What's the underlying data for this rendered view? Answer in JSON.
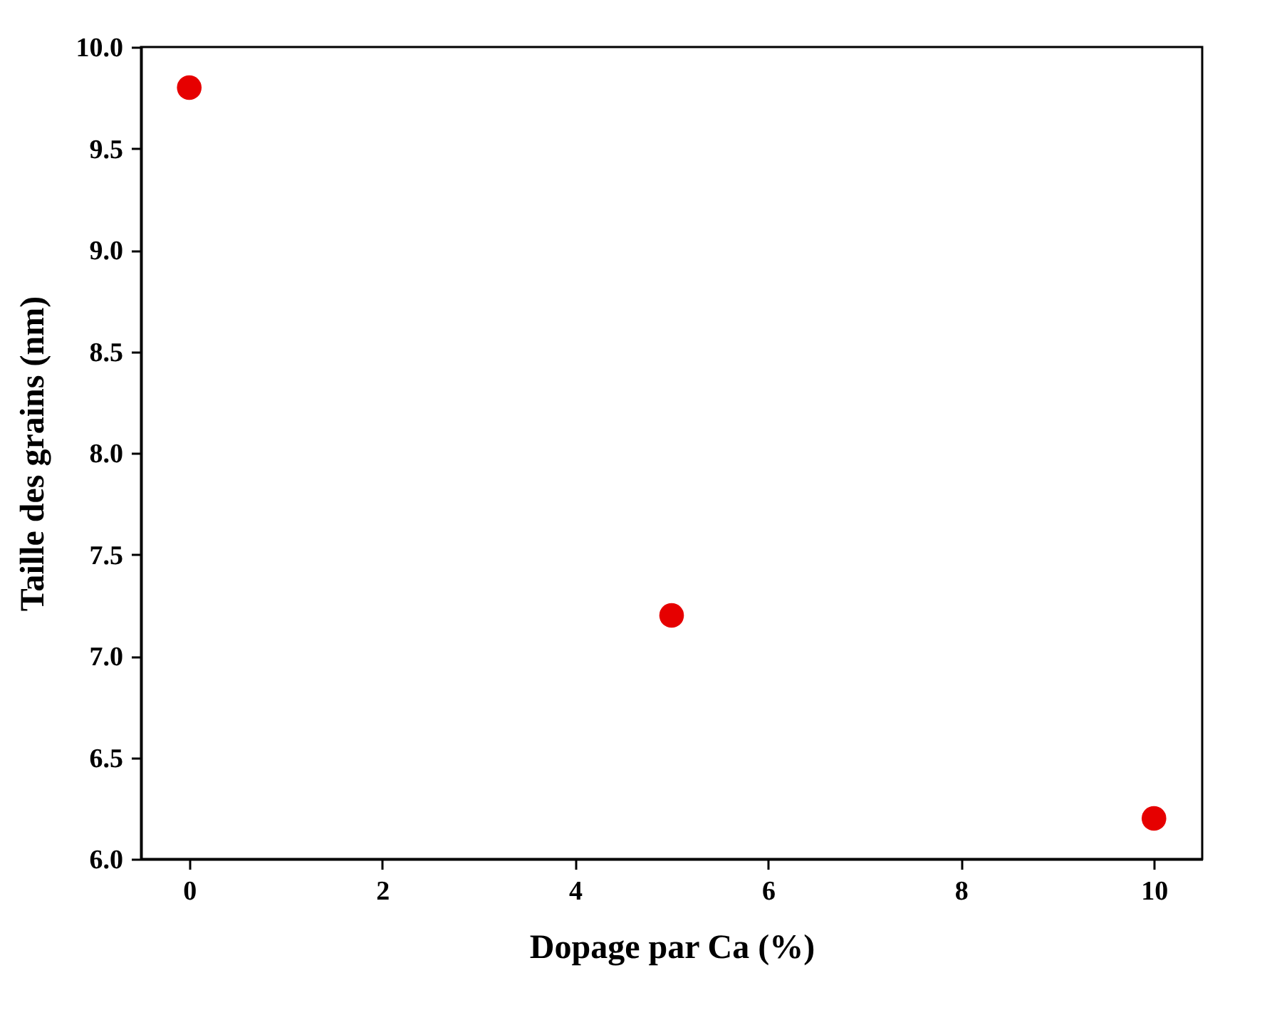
{
  "chart_data": {
    "type": "scatter",
    "xlabel": "Dopage par Ca (%)",
    "ylabel": "Taille des grains (nm)",
    "x": [
      0,
      5,
      10
    ],
    "series": [
      {
        "color": "#e60000",
        "values": [
          9.8,
          7.2,
          6.2
        ]
      }
    ],
    "xlim": [
      -0.5,
      10.5
    ],
    "xticks": [
      0,
      2,
      4,
      6,
      8,
      10
    ],
    "ylim": [
      6.0,
      10.0
    ],
    "yticks": [
      {
        "value": 6,
        "label": "6.0"
      },
      {
        "value": 6.5,
        "label": "6.5"
      },
      {
        "value": 7,
        "label": "7.0"
      },
      {
        "value": 7.5,
        "label": "7.5"
      },
      {
        "value": 8,
        "label": "8.0"
      },
      {
        "value": 8.5,
        "label": "8.5"
      },
      {
        "value": 9,
        "label": "9.0"
      },
      {
        "value": 9.5,
        "label": "9.5"
      },
      {
        "value": 10,
        "label": "10.0"
      }
    ],
    "grid": false,
    "marker": "circle"
  }
}
